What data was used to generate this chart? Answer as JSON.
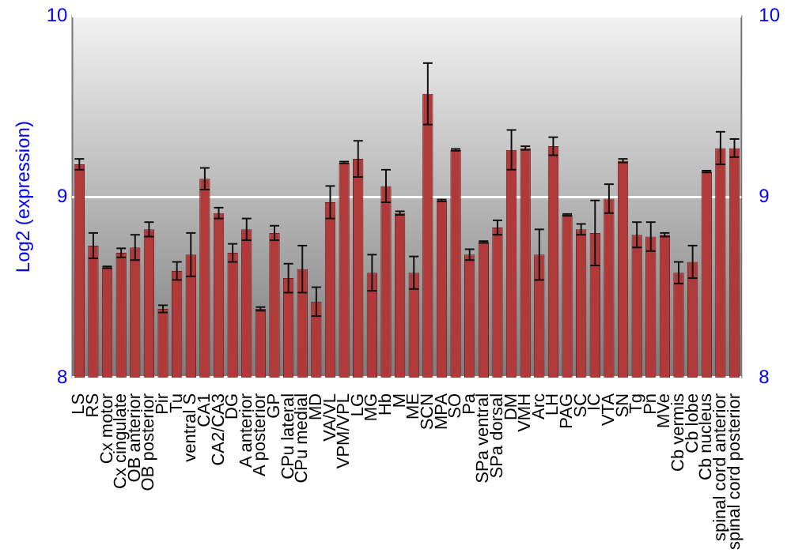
{
  "chart_data": {
    "type": "bar",
    "ylabel": "Log2 (expression)",
    "categories": [
      "LS",
      "RS",
      "Cx motor",
      "Cx cingulate",
      "OB anterior",
      "OB posterior",
      "Pir",
      "Tu",
      "ventral S",
      "CA1",
      "CA2/CA3",
      "DG",
      "A anterior",
      "A posterior",
      "GP",
      "CPu lateral",
      "CPu medial",
      "MD",
      "VA/VL",
      "VPM/VPL",
      "LG",
      "MG",
      "Hb",
      "M",
      "ME",
      "SCN",
      "MPA",
      "SO",
      "Pa",
      "SPa ventral",
      "SPa dorsal",
      "DM",
      "VMH",
      "Arc",
      "LH",
      "PAG",
      "SC",
      "IC",
      "VTA",
      "SN",
      "Tg",
      "Pn",
      "MVe",
      "Cb vermis",
      "Cb lobe",
      "Cb nucleus",
      "spinal cord anterior",
      "spinal cord posterior"
    ],
    "values": [
      9.18,
      8.73,
      8.61,
      8.69,
      8.72,
      8.82,
      8.38,
      8.59,
      8.68,
      9.1,
      8.91,
      8.69,
      8.82,
      8.38,
      8.8,
      8.55,
      8.6,
      8.42,
      8.97,
      9.19,
      9.21,
      8.58,
      9.06,
      8.91,
      8.58,
      9.57,
      8.98,
      9.26,
      8.68,
      8.75,
      8.83,
      9.26,
      9.27,
      8.68,
      9.28,
      8.9,
      8.82,
      8.8,
      8.99,
      9.2,
      8.79,
      8.78,
      8.79,
      8.58,
      8.64,
      9.14,
      9.27,
      9.27
    ],
    "errors": [
      0.03,
      0.07,
      0.005,
      0.025,
      0.07,
      0.04,
      0.02,
      0.05,
      0.12,
      0.06,
      0.03,
      0.05,
      0.06,
      0.01,
      0.04,
      0.08,
      0.13,
      0.08,
      0.09,
      0.005,
      0.1,
      0.1,
      0.09,
      0.01,
      0.09,
      0.17,
      0.005,
      0.005,
      0.03,
      0.005,
      0.04,
      0.11,
      0.01,
      0.14,
      0.05,
      0.005,
      0.03,
      0.18,
      0.08,
      0.01,
      0.07,
      0.08,
      0.01,
      0.06,
      0.09,
      0.005,
      0.09,
      0.05
    ],
    "color": "#b03a3a",
    "ylim": [
      8,
      10
    ],
    "yticks": [
      8,
      9,
      10
    ],
    "y2lim": [
      8,
      10
    ],
    "y2ticks": [
      8,
      9,
      10
    ],
    "grid": "y"
  }
}
